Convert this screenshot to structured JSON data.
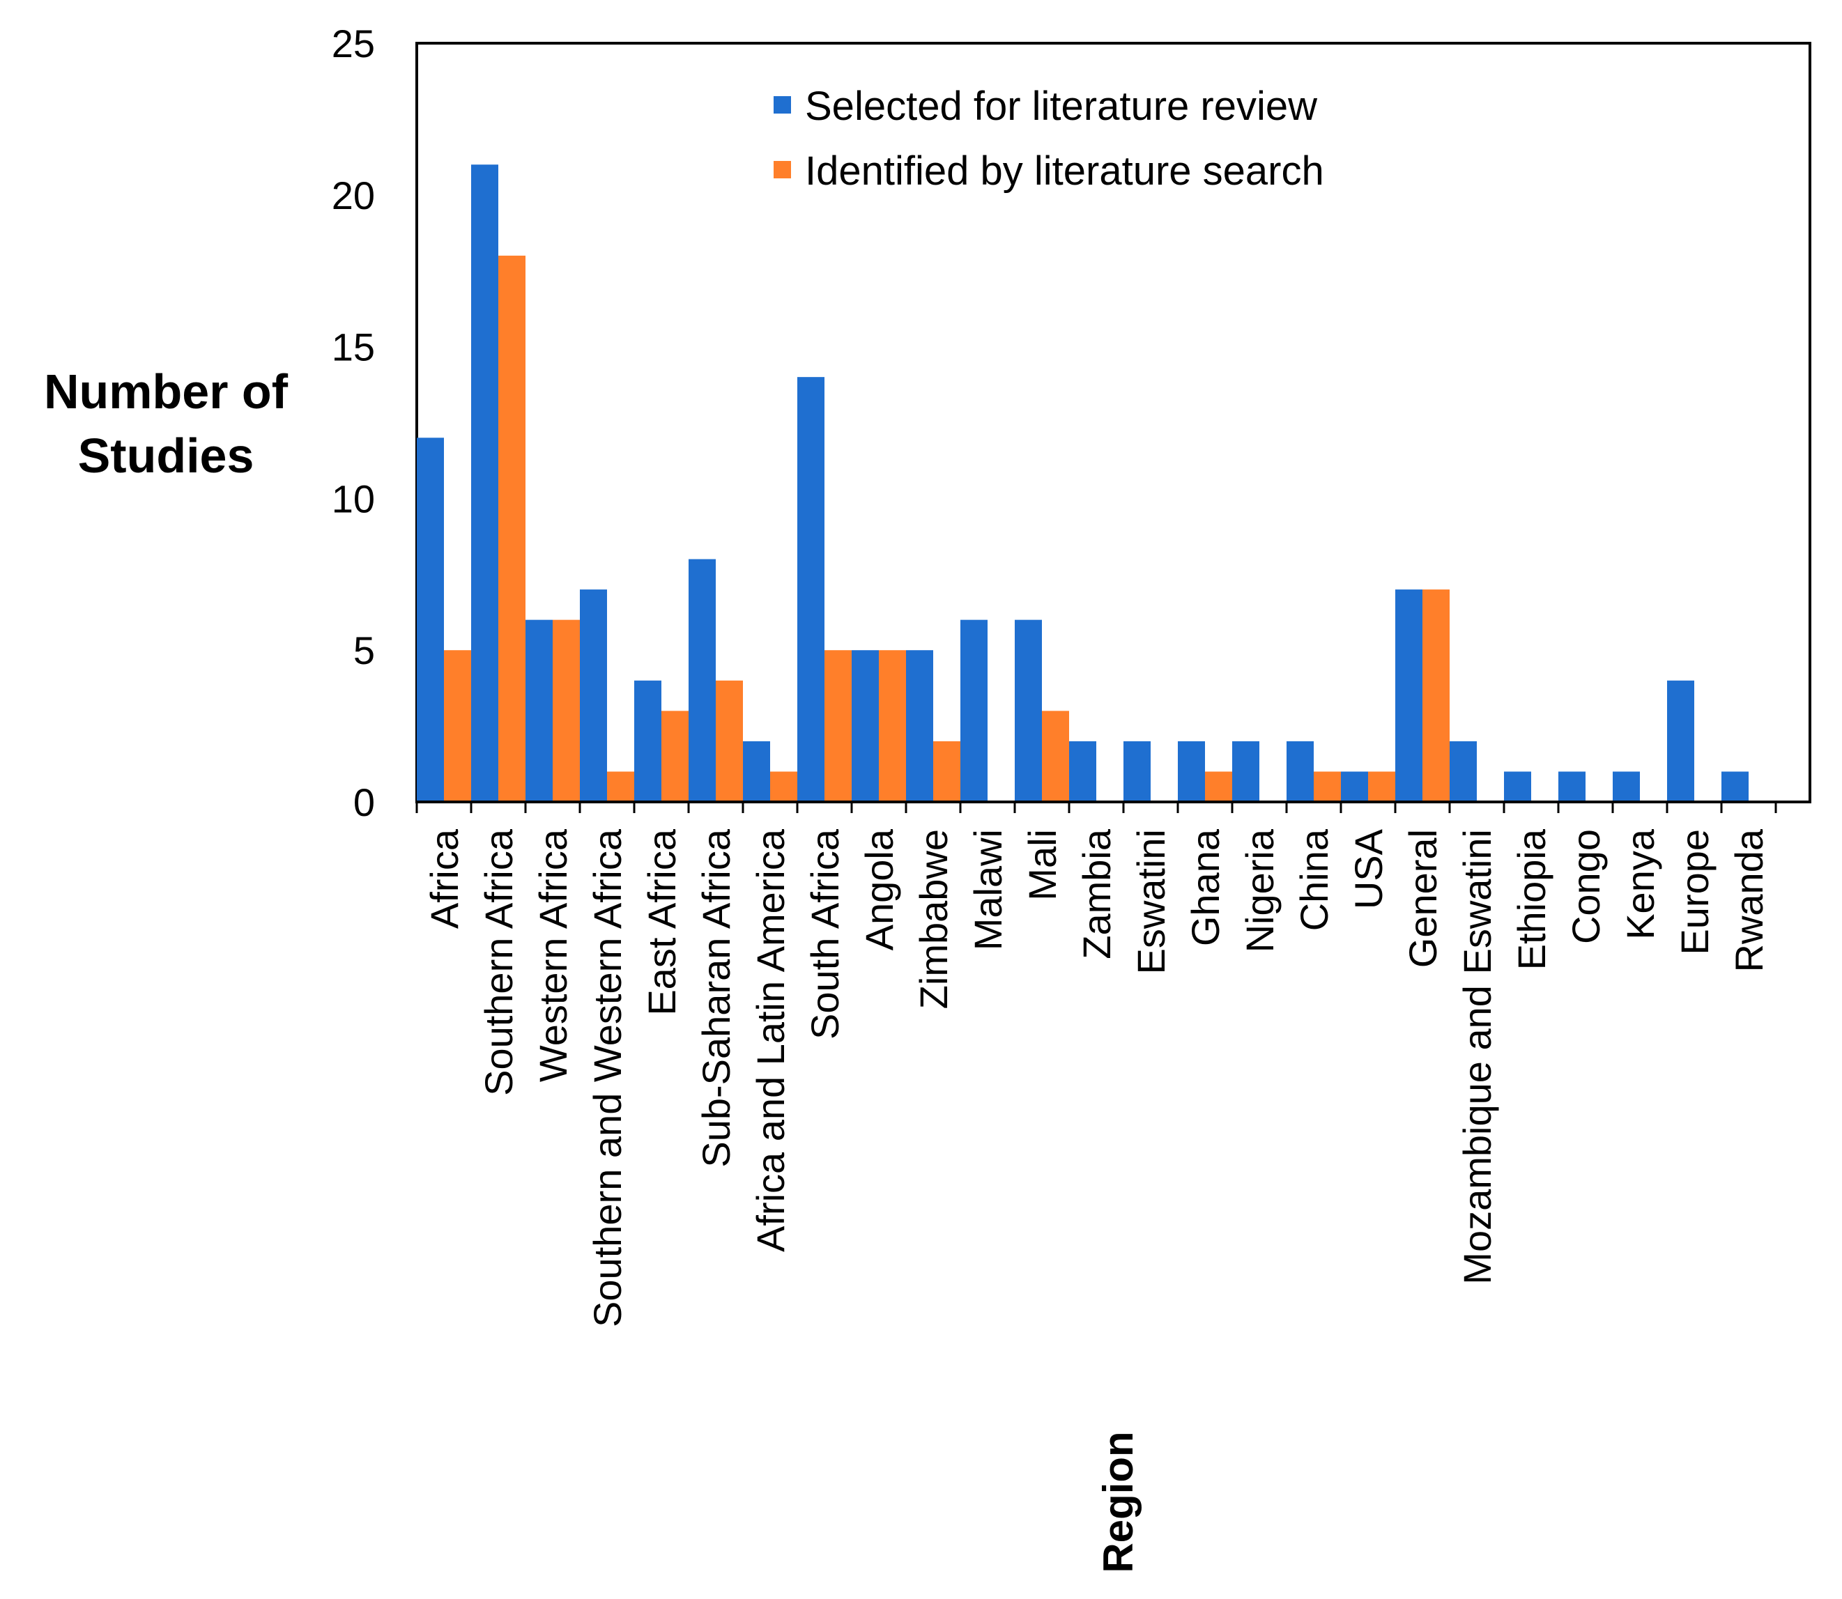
{
  "chart_data": {
    "type": "bar",
    "title": "",
    "ylabel": "Number of Studies",
    "ylabel_lines": [
      "Number of",
      "Studies"
    ],
    "xlabel": "Region",
    "ylim": [
      0,
      25
    ],
    "yticks": [
      0,
      5,
      10,
      15,
      20,
      25
    ],
    "grid": false,
    "legend_position": "top",
    "categories": [
      "Africa",
      "Southern Africa",
      "Western Africa",
      "Southern and Western Africa",
      "East Africa",
      "Sub-Saharan Africa",
      "Africa and Latin America",
      "South Africa",
      "Angola",
      "Zimbabwe",
      "Malawi",
      "Mali",
      "Zambia",
      "Eswatini",
      "Ghana",
      "Nigeria",
      "China",
      "USA",
      "General",
      "Mozambique and Eswatini",
      "Ethiopia",
      "Congo",
      "Kenya",
      "Europe",
      "Rwanda"
    ],
    "series": [
      {
        "name": "Selected for literature review",
        "color": "#1F6FD0",
        "values": [
          12,
          21,
          6,
          7,
          4,
          8,
          2,
          14,
          5,
          5,
          6,
          6,
          2,
          2,
          2,
          2,
          2,
          1,
          7,
          2,
          1,
          1,
          1,
          4,
          1
        ]
      },
      {
        "name": "Identified by literature search",
        "color": "#FF7F2A",
        "values": [
          5,
          18,
          6,
          1,
          3,
          4,
          1,
          5,
          5,
          2,
          0,
          3,
          0,
          0,
          1,
          0,
          1,
          1,
          7,
          0,
          0,
          0,
          0,
          0,
          0
        ]
      }
    ]
  }
}
